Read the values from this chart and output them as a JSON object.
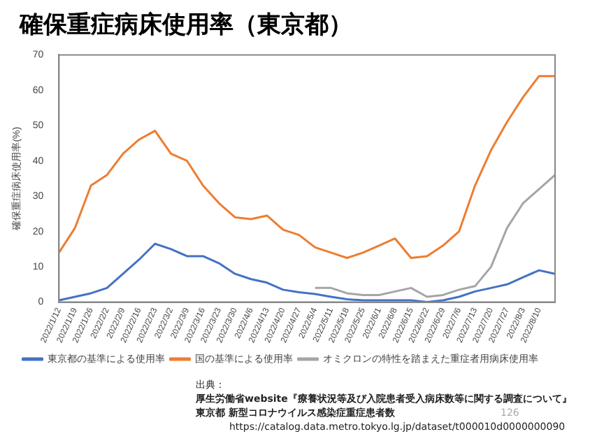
{
  "chart_data": {
    "type": "line",
    "title": "確保重症病床使用率（東京都）",
    "ylabel": "確保重症病床使用率(%)",
    "categories": [
      "2022/1/12",
      "2022/1/19",
      "2022/1/26",
      "2022/2/2",
      "2022/2/9",
      "2022/2/16",
      "2022/2/23",
      "2022/3/2",
      "2022/3/9",
      "2022/3/16",
      "2022/3/23",
      "2022/3/30",
      "2022/4/6",
      "2022/4/13",
      "2022/4/20",
      "2022/4/27",
      "2022/5/4",
      "2022/5/11",
      "2022/5/18",
      "2022/5/25",
      "2022/6/1",
      "2022/6/8",
      "2022/6/15",
      "2022/6/22",
      "2022/6/29",
      "2022/7/6",
      "2022/7/13",
      "2022/7/20",
      "2022/7/27",
      "2022/8/3",
      "2022/8/10",
      null
    ],
    "series": [
      {
        "name": "東京都の基準による使用率",
        "color": "#4472c4",
        "values": [
          0.5,
          1.5,
          2.5,
          4,
          8,
          12,
          16.5,
          15,
          13,
          13,
          11,
          8,
          6.5,
          5.5,
          3.5,
          2.8,
          2.3,
          1.5,
          0.8,
          0.5,
          0.5,
          0.5,
          0.5,
          0,
          0.5,
          1.5,
          3,
          4,
          5,
          7,
          9,
          8
        ]
      },
      {
        "name": "国の基準による使用率",
        "color": "#ed7d31",
        "values": [
          14,
          21,
          33,
          36,
          42,
          46,
          48.5,
          42,
          40,
          33,
          28,
          24,
          23.5,
          24.5,
          20.5,
          19,
          15.5,
          14,
          12.5,
          14,
          16,
          18,
          12.5,
          13,
          16,
          20,
          33,
          43,
          51,
          58,
          64,
          64
        ]
      },
      {
        "name": "オミクロンの特性を踏まえた重症者用病床使用率",
        "color": "#a5a5a5",
        "values": [
          null,
          null,
          null,
          null,
          null,
          null,
          null,
          null,
          null,
          null,
          null,
          null,
          null,
          null,
          null,
          null,
          4,
          4,
          2.5,
          2,
          2,
          3,
          4,
          1.5,
          2,
          3.5,
          4.5,
          10,
          21,
          28,
          32,
          36
        ]
      }
    ],
    "ylim": [
      0,
      70
    ],
    "yticks": [
      0,
      10,
      20,
      30,
      40,
      50,
      60,
      70
    ],
    "grid": false,
    "legend": "bottom",
    "marker": "none",
    "line_style": "solid",
    "annotations": [
      "出典：",
      "厚生労働省website『療養状況等及び入院患者受入病床数等に関する調査について』",
      "東京都 新型コロナウイルス感染症重症患者数",
      "126",
      "https://catalog.data.metro.tokyo.lg.jp/dataset/t000010d0000000090"
    ]
  }
}
